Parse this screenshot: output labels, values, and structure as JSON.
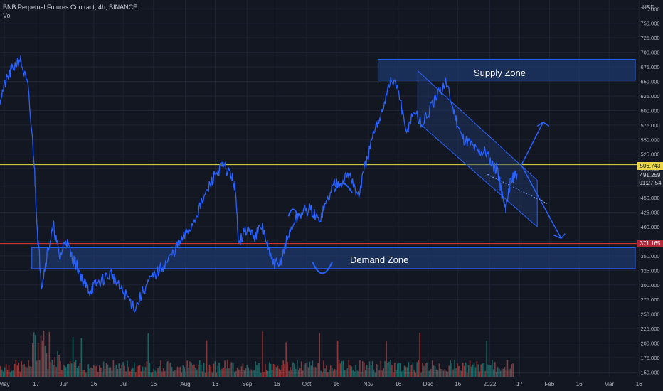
{
  "header": {
    "title": "BNB Perpetual Futures Contract, 4h, BINANCE",
    "indicator": "Vol"
  },
  "currency_label": "USD",
  "annotations": {
    "supply_zone": "Supply Zone",
    "demand_zone": "Demand Zone"
  },
  "price_tags": {
    "yellow": "506.743",
    "last": "491.259",
    "countdown": "01:27:54",
    "red": "371.165"
  },
  "colors": {
    "background": "#131722",
    "candle": "#2962ff",
    "zone_fill": "#1e3a6e",
    "zone_border": "#2962ff",
    "yellow_line": "#e8d84a",
    "red_line": "#e53935",
    "vol_up": "#26a69a",
    "vol_down": "#ef5350"
  },
  "chart_data": {
    "type": "line",
    "title": "BNB Perpetual Futures Contract, 4h, BINANCE",
    "x_ticks": [
      "May",
      "17",
      "Jun",
      "16",
      "Jul",
      "16",
      "Aug",
      "16",
      "Sep",
      "16",
      "Oct",
      "16",
      "Nov",
      "16",
      "Dec",
      "16",
      "2022",
      "17",
      "Feb",
      "16",
      "Mar",
      "16"
    ],
    "y_ticks": [
      "775.000",
      "750.000",
      "725.000",
      "700.000",
      "675.000",
      "650.000",
      "625.000",
      "600.000",
      "575.000",
      "550.000",
      "525.000",
      "500.000",
      "475.000",
      "450.000",
      "425.000",
      "400.000",
      "375.000",
      "350.000",
      "325.000",
      "300.000",
      "275.000",
      "250.000",
      "225.000",
      "200.000",
      "175.000",
      "150.000"
    ],
    "ylim": [
      142,
      790
    ],
    "x_range_days": [
      0,
      320
    ],
    "series": [
      {
        "x": [
          0,
          3,
          6,
          10,
          14,
          17,
          19,
          21,
          24,
          27,
          30,
          33,
          36,
          39,
          42,
          45,
          48,
          52,
          56,
          60,
          64,
          68,
          72,
          76,
          80,
          84,
          88,
          92,
          96,
          100,
          104,
          108,
          112,
          116,
          118,
          120,
          124,
          128,
          132,
          136,
          140,
          144,
          148,
          152,
          156,
          160,
          164,
          168,
          172,
          176,
          180,
          184,
          188,
          192,
          196,
          200,
          204,
          208,
          212,
          216,
          220,
          224,
          228,
          232,
          236,
          240,
          244,
          248,
          250,
          252,
          254,
          256,
          258,
          260
        ],
        "values": [
          620,
          650,
          670,
          690,
          640,
          520,
          380,
          300,
          360,
          400,
          345,
          380,
          350,
          330,
          305,
          290,
          300,
          310,
          320,
          295,
          280,
          260,
          290,
          310,
          325,
          340,
          360,
          380,
          400,
          430,
          460,
          490,
          505,
          490,
          470,
          375,
          395,
          385,
          400,
          345,
          330,
          375,
          410,
          425,
          430,
          410,
          440,
          475,
          480,
          490,
          450,
          510,
          560,
          600,
          650,
          640,
          560,
          600,
          575,
          600,
          625,
          650,
          600,
          555,
          545,
          530,
          530,
          505,
          500,
          460,
          430,
          470,
          485,
          491
        ]
      }
    ],
    "volume": {
      "x_range_days": [
        0,
        258
      ],
      "ylim_fraction": [
        0,
        1
      ]
    },
    "zones": [
      {
        "name": "Supply Zone",
        "x_start": 190,
        "x_end": 320,
        "y_low": 652,
        "y_high": 688
      },
      {
        "name": "Demand Zone",
        "x_start": 16,
        "x_end": 320,
        "y_low": 328,
        "y_high": 364
      }
    ],
    "horizontal_lines": [
      {
        "value": 506.743,
        "color": "#e8d84a"
      },
      {
        "value": 371.165,
        "color": "#e53935"
      }
    ],
    "channel": {
      "upper": [
        [
          210,
          668
        ],
        [
          270,
          480
        ]
      ],
      "lower": [
        [
          210,
          580
        ],
        [
          270,
          400
        ]
      ]
    }
  }
}
